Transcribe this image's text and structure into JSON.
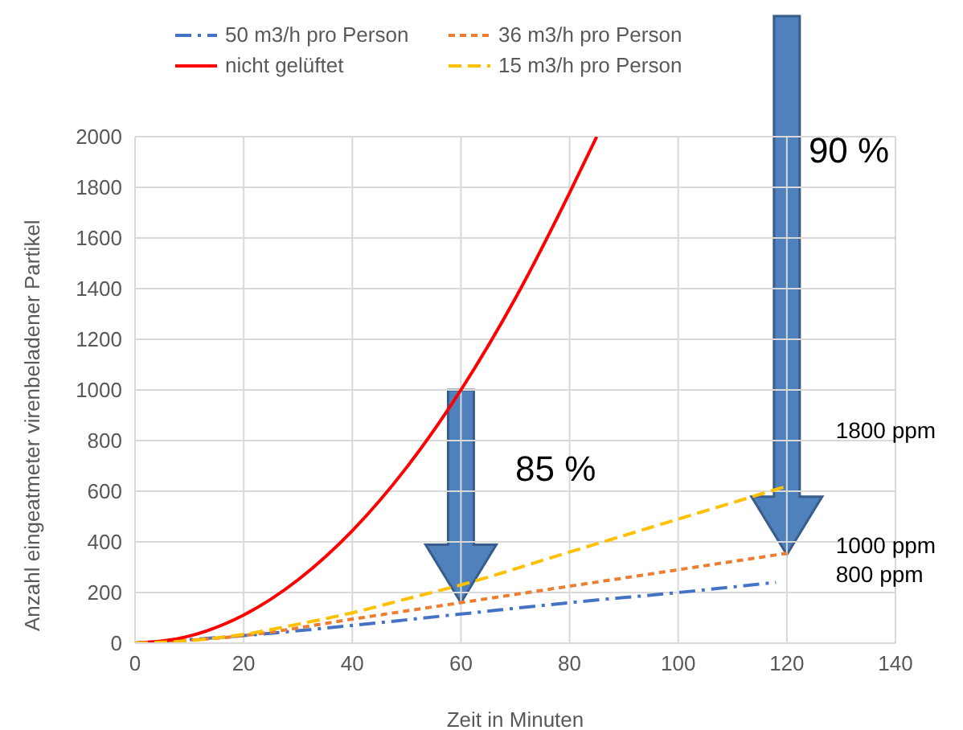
{
  "chart_data": {
    "type": "line",
    "xlabel": "Zeit in Minuten",
    "ylabel": "Anzahl eingeatmeter virenbeladener Partikel",
    "xlim": [
      0,
      140
    ],
    "xticks": [
      0,
      20,
      40,
      60,
      80,
      100,
      120,
      140
    ],
    "ylim": [
      0,
      2000
    ],
    "yticks": [
      0,
      200,
      400,
      600,
      800,
      1000,
      1200,
      1400,
      1600,
      1800,
      2000
    ],
    "grid": true,
    "legend": "top",
    "marker": "none",
    "series": [
      {
        "name": "50 m3/h pro Person",
        "color": "#4472c4",
        "line_style": "dashdot",
        "x": [
          0,
          20,
          40,
          60,
          80,
          100,
          118
        ],
        "values": [
          0,
          30,
          70,
          115,
          160,
          200,
          240
        ]
      },
      {
        "name": "36 m3/h pro Person",
        "color": "#ed7d31",
        "line_style": "dotted",
        "x": [
          0,
          20,
          40,
          60,
          80,
          100,
          120
        ],
        "values": [
          0,
          30,
          95,
          160,
          225,
          290,
          355
        ]
      },
      {
        "name": "nicht gelüftet",
        "color": "#ff0000",
        "line_style": "solid",
        "x": [
          0,
          10,
          20,
          30,
          40,
          50,
          60,
          70,
          80,
          85
        ],
        "values": [
          0,
          28,
          111,
          250,
          444,
          694,
          1000,
          1361,
          1778,
          2000
        ]
      },
      {
        "name": "15 m3/h pro Person",
        "color": "#ffc000",
        "line_style": "dashed",
        "x": [
          0,
          10,
          20,
          30,
          40,
          50,
          60,
          80,
          100,
          120
        ],
        "values": [
          0,
          10,
          35,
          75,
          120,
          175,
          230,
          360,
          490,
          620
        ]
      }
    ],
    "annotations": [
      {
        "text": "85 %"
      },
      {
        "text": "90 %"
      },
      "1800 ppm",
      "1000 ppm",
      "800 ppm"
    ]
  }
}
